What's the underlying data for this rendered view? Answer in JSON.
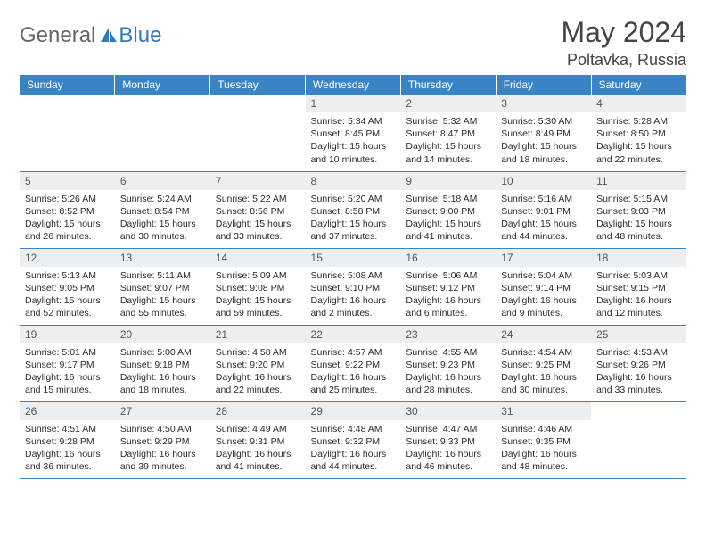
{
  "brand": {
    "text1": "General",
    "text2": "Blue"
  },
  "title": "May 2024",
  "location": "Poltavka, Russia",
  "colors": {
    "header_bg": "#3b84c4",
    "header_text": "#ffffff",
    "daynum_bg": "#eceff2",
    "row_border": "#3b84c4",
    "brand_gray": "#666666",
    "brand_blue": "#2f79bd",
    "body_text": "#2b2b2b"
  },
  "typography": {
    "title_fontsize": 32,
    "location_fontsize": 18,
    "weekday_fontsize": 12,
    "daynum_fontsize": 12,
    "body_fontsize": 10.5
  },
  "weekdays": [
    "Sunday",
    "Monday",
    "Tuesday",
    "Wednesday",
    "Thursday",
    "Friday",
    "Saturday"
  ],
  "weeks": [
    [
      {
        "empty": true
      },
      {
        "empty": true
      },
      {
        "empty": true
      },
      {
        "day": "1",
        "sunrise": "5:34 AM",
        "sunset": "8:45 PM",
        "daylight": "15 hours and 10 minutes."
      },
      {
        "day": "2",
        "sunrise": "5:32 AM",
        "sunset": "8:47 PM",
        "daylight": "15 hours and 14 minutes."
      },
      {
        "day": "3",
        "sunrise": "5:30 AM",
        "sunset": "8:49 PM",
        "daylight": "15 hours and 18 minutes."
      },
      {
        "day": "4",
        "sunrise": "5:28 AM",
        "sunset": "8:50 PM",
        "daylight": "15 hours and 22 minutes."
      }
    ],
    [
      {
        "day": "5",
        "sunrise": "5:26 AM",
        "sunset": "8:52 PM",
        "daylight": "15 hours and 26 minutes."
      },
      {
        "day": "6",
        "sunrise": "5:24 AM",
        "sunset": "8:54 PM",
        "daylight": "15 hours and 30 minutes."
      },
      {
        "day": "7",
        "sunrise": "5:22 AM",
        "sunset": "8:56 PM",
        "daylight": "15 hours and 33 minutes."
      },
      {
        "day": "8",
        "sunrise": "5:20 AM",
        "sunset": "8:58 PM",
        "daylight": "15 hours and 37 minutes."
      },
      {
        "day": "9",
        "sunrise": "5:18 AM",
        "sunset": "9:00 PM",
        "daylight": "15 hours and 41 minutes."
      },
      {
        "day": "10",
        "sunrise": "5:16 AM",
        "sunset": "9:01 PM",
        "daylight": "15 hours and 44 minutes."
      },
      {
        "day": "11",
        "sunrise": "5:15 AM",
        "sunset": "9:03 PM",
        "daylight": "15 hours and 48 minutes."
      }
    ],
    [
      {
        "day": "12",
        "sunrise": "5:13 AM",
        "sunset": "9:05 PM",
        "daylight": "15 hours and 52 minutes."
      },
      {
        "day": "13",
        "sunrise": "5:11 AM",
        "sunset": "9:07 PM",
        "daylight": "15 hours and 55 minutes."
      },
      {
        "day": "14",
        "sunrise": "5:09 AM",
        "sunset": "9:08 PM",
        "daylight": "15 hours and 59 minutes."
      },
      {
        "day": "15",
        "sunrise": "5:08 AM",
        "sunset": "9:10 PM",
        "daylight": "16 hours and 2 minutes."
      },
      {
        "day": "16",
        "sunrise": "5:06 AM",
        "sunset": "9:12 PM",
        "daylight": "16 hours and 6 minutes."
      },
      {
        "day": "17",
        "sunrise": "5:04 AM",
        "sunset": "9:14 PM",
        "daylight": "16 hours and 9 minutes."
      },
      {
        "day": "18",
        "sunrise": "5:03 AM",
        "sunset": "9:15 PM",
        "daylight": "16 hours and 12 minutes."
      }
    ],
    [
      {
        "day": "19",
        "sunrise": "5:01 AM",
        "sunset": "9:17 PM",
        "daylight": "16 hours and 15 minutes."
      },
      {
        "day": "20",
        "sunrise": "5:00 AM",
        "sunset": "9:18 PM",
        "daylight": "16 hours and 18 minutes."
      },
      {
        "day": "21",
        "sunrise": "4:58 AM",
        "sunset": "9:20 PM",
        "daylight": "16 hours and 22 minutes."
      },
      {
        "day": "22",
        "sunrise": "4:57 AM",
        "sunset": "9:22 PM",
        "daylight": "16 hours and 25 minutes."
      },
      {
        "day": "23",
        "sunrise": "4:55 AM",
        "sunset": "9:23 PM",
        "daylight": "16 hours and 28 minutes."
      },
      {
        "day": "24",
        "sunrise": "4:54 AM",
        "sunset": "9:25 PM",
        "daylight": "16 hours and 30 minutes."
      },
      {
        "day": "25",
        "sunrise": "4:53 AM",
        "sunset": "9:26 PM",
        "daylight": "16 hours and 33 minutes."
      }
    ],
    [
      {
        "day": "26",
        "sunrise": "4:51 AM",
        "sunset": "9:28 PM",
        "daylight": "16 hours and 36 minutes."
      },
      {
        "day": "27",
        "sunrise": "4:50 AM",
        "sunset": "9:29 PM",
        "daylight": "16 hours and 39 minutes."
      },
      {
        "day": "28",
        "sunrise": "4:49 AM",
        "sunset": "9:31 PM",
        "daylight": "16 hours and 41 minutes."
      },
      {
        "day": "29",
        "sunrise": "4:48 AM",
        "sunset": "9:32 PM",
        "daylight": "16 hours and 44 minutes."
      },
      {
        "day": "30",
        "sunrise": "4:47 AM",
        "sunset": "9:33 PM",
        "daylight": "16 hours and 46 minutes."
      },
      {
        "day": "31",
        "sunrise": "4:46 AM",
        "sunset": "9:35 PM",
        "daylight": "16 hours and 48 minutes."
      },
      {
        "empty": true
      }
    ]
  ],
  "labels": {
    "sunrise": "Sunrise:",
    "sunset": "Sunset:",
    "daylight": "Daylight:"
  }
}
